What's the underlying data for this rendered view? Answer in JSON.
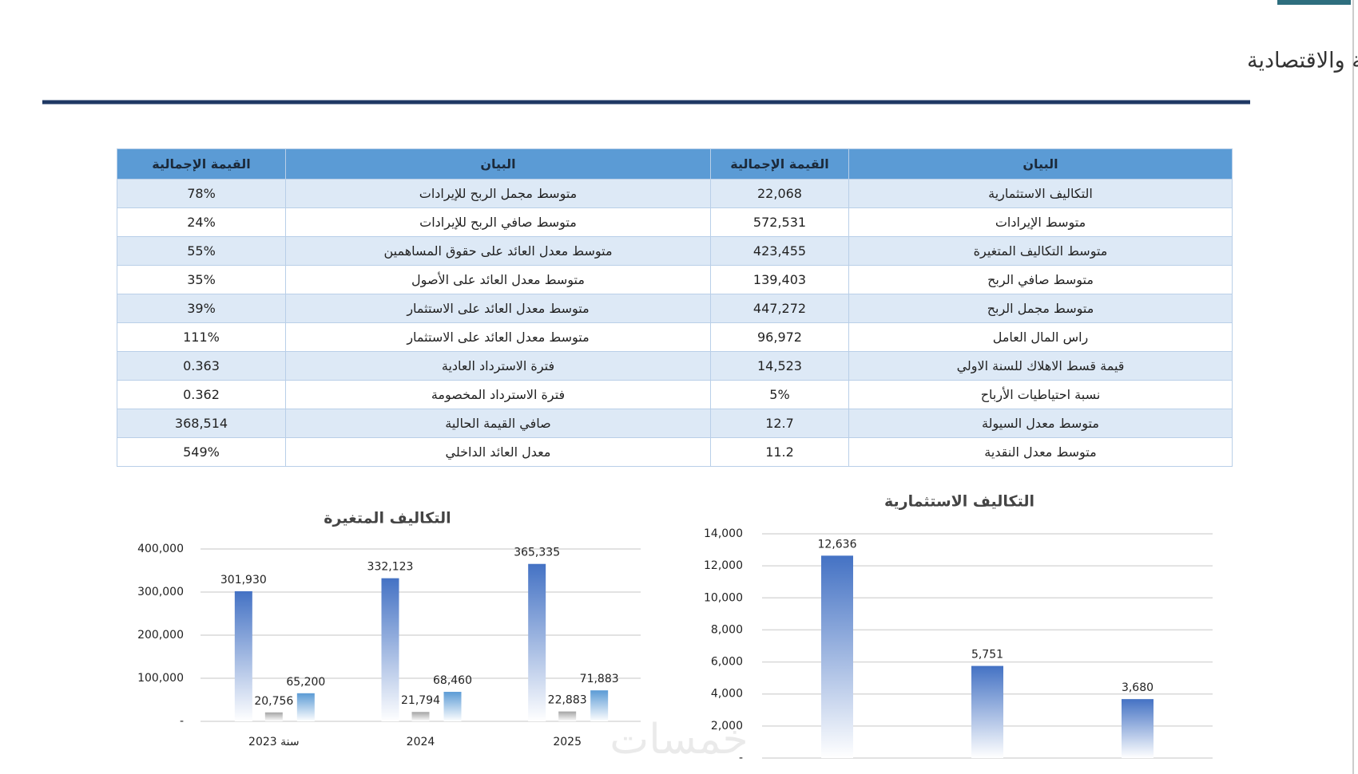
{
  "title": "ثالثاً: ملخص الخطة المالية والاقتصادية",
  "table": {
    "headers": [
      "البيان",
      "القيمة الإجمالية",
      "البيان",
      "القيمة الإجمالية"
    ],
    "rows": [
      [
        "التكاليف الاستثمارية",
        "22,068",
        "متوسط مجمل الربح للإيرادات",
        "78%"
      ],
      [
        "متوسط الإيرادات",
        "572,531",
        "متوسط صافي الربح للإيرادات",
        "24%"
      ],
      [
        "متوسط التكاليف المتغيرة",
        "423,455",
        "متوسط معدل العائد على حقوق المساهمين",
        "55%"
      ],
      [
        "متوسط صافي الربح",
        "139,403",
        "متوسط معدل العائد على الأصول",
        "35%"
      ],
      [
        "متوسط مجمل الربح",
        "447,272",
        "متوسط معدل العائد على الاستثمار",
        "39%"
      ],
      [
        "راس المال العامل",
        "96,972",
        "متوسط معدل العائد على الاستثمار",
        "111%"
      ],
      [
        "قيمة قسط الاهلاك للسنة الاولي",
        "14,523",
        "فترة الاسترداد العادية",
        "0.363"
      ],
      [
        "نسبة احتياطيات الأرباح",
        "5%",
        "فترة الاسترداد المخصومة",
        "0.362"
      ],
      [
        "متوسط معدل السيولة",
        "12.7",
        "صافي القيمة الحالية",
        "368,514"
      ],
      [
        "متوسط معدل النقدية",
        "11.2",
        "معدل العائد الداخلي",
        "549%"
      ]
    ]
  },
  "chart_data": [
    {
      "type": "bar",
      "title": "التكاليف المتغيرة",
      "categories": [
        "سنة 2023",
        "2024",
        "2025"
      ],
      "series": [
        {
          "color": "#4472c4",
          "values": [
            301930,
            332123,
            365335
          ],
          "value_labels": [
            "301,930",
            "332,123",
            "365,335"
          ]
        },
        {
          "color": "#a5a5a5",
          "values": [
            20756,
            21794,
            22883
          ],
          "value_labels": [
            "20,756",
            "21,794",
            "22,883"
          ]
        },
        {
          "color": "#5b9bd5",
          "values": [
            65200,
            68460,
            71883
          ],
          "value_labels": [
            "65,200",
            "68,460",
            "71,883"
          ]
        }
      ],
      "ylim": [
        0,
        400000
      ],
      "yticks": [
        {
          "value": 0,
          "label": "-"
        },
        {
          "value": 100000,
          "label": "100,000"
        },
        {
          "value": 200000,
          "label": "200,000"
        },
        {
          "value": 300000,
          "label": "300,000"
        },
        {
          "value": 400000,
          "label": "400,000"
        }
      ],
      "grid": true
    },
    {
      "type": "bar",
      "title": "التكاليف الاستثمارية",
      "categories": [
        null,
        null,
        null
      ],
      "values": [
        12636,
        5751,
        3680
      ],
      "value_labels": [
        "12,636",
        "5,751",
        "3,680"
      ],
      "color": "#4472c4",
      "ylim": [
        0,
        14000
      ],
      "yticks": [
        {
          "value": 0,
          "label": "-"
        },
        {
          "value": 2000,
          "label": "2,000"
        },
        {
          "value": 4000,
          "label": "4,000"
        },
        {
          "value": 6000,
          "label": "6,000"
        },
        {
          "value": 8000,
          "label": "8,000"
        },
        {
          "value": 10000,
          "label": "10,000"
        },
        {
          "value": 12000,
          "label": "12,000"
        },
        {
          "value": 14000,
          "label": "14,000"
        }
      ],
      "grid": true
    }
  ],
  "watermark": "خمسات"
}
